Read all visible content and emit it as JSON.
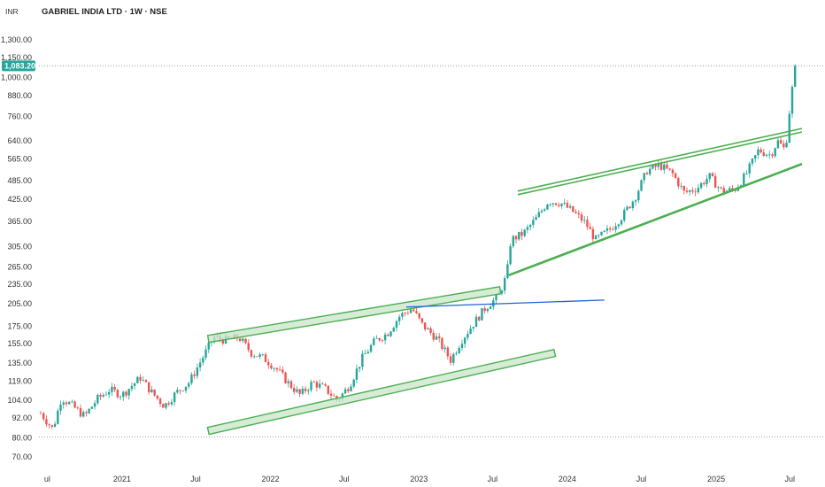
{
  "header": {
    "currency": "INR",
    "title": "GABRIEL INDIA LTD · 1W · NSE"
  },
  "colors": {
    "up_candle": "#26a69a",
    "down_candle": "#ef5350",
    "trendline_green": "#4caf50",
    "channel_fill": "#c8e6c9",
    "horizontal_line_blue": "#1e63d6",
    "price_badge": "#26a69a",
    "dotted_line": "#9e9e9e"
  },
  "current_price_label": "1,083.20",
  "chart_data": {
    "type": "candlestick",
    "title": "GABRIEL INDIA LTD · 1W · NSE",
    "y_scale": "log",
    "y_ticks": [
      "1,300.00",
      "1,150.00",
      "1,000.00",
      "880.00",
      "760.00",
      "640.00",
      "565.00",
      "485.00",
      "425.00",
      "365.00",
      "305.00",
      "265.00",
      "235.00",
      "205.00",
      "175.00",
      "155.00",
      "135.00",
      "119.00",
      "104.00",
      "92.00",
      "80.00",
      "70.00"
    ],
    "y_tick_values": [
      1300,
      1150,
      1000,
      880,
      760,
      640,
      565,
      485,
      425,
      365,
      305,
      265,
      235,
      205,
      175,
      155,
      135,
      119,
      104,
      92,
      80,
      70
    ],
    "ylim": [
      65,
      1400
    ],
    "x_range": [
      "2020-06-15",
      "2025-07-31"
    ],
    "x_ticks": [
      {
        "label": "ul",
        "date": "2020-07-01"
      },
      {
        "label": "2021",
        "date": "2021-01-01"
      },
      {
        "label": "Jul",
        "date": "2021-07-01"
      },
      {
        "label": "2022",
        "date": "2022-01-01"
      },
      {
        "label": "Jul",
        "date": "2022-07-01"
      },
      {
        "label": "2023",
        "date": "2023-01-01"
      },
      {
        "label": "Jul",
        "date": "2023-07-01"
      },
      {
        "label": "2024",
        "date": "2024-01-01"
      },
      {
        "label": "Jul",
        "date": "2024-07-01"
      },
      {
        "label": "2025",
        "date": "2025-01-01"
      },
      {
        "label": "Jul",
        "date": "2025-07-01"
      }
    ],
    "reference_lines": [
      {
        "kind": "dotted",
        "value": 1083.2
      },
      {
        "kind": "dotted",
        "value": 80.5
      }
    ],
    "price_path": [
      [
        "2020-06-15",
        95
      ],
      [
        "2020-07-15",
        85
      ],
      [
        "2020-08-05",
        106
      ],
      [
        "2020-09-01",
        100
      ],
      [
        "2020-10-01",
        93
      ],
      [
        "2020-11-01",
        105
      ],
      [
        "2020-12-01",
        112
      ],
      [
        "2021-01-01",
        108
      ],
      [
        "2021-02-15",
        122
      ],
      [
        "2021-03-15",
        110
      ],
      [
        "2021-04-15",
        100
      ],
      [
        "2021-05-15",
        110
      ],
      [
        "2021-06-15",
        118
      ],
      [
        "2021-07-15",
        138
      ],
      [
        "2021-08-15",
        162
      ],
      [
        "2021-09-15",
        158
      ],
      [
        "2021-10-15",
        162
      ],
      [
        "2021-11-15",
        145
      ],
      [
        "2021-12-15",
        140
      ],
      [
        "2022-01-15",
        130
      ],
      [
        "2022-02-15",
        117
      ],
      [
        "2022-03-15",
        108
      ],
      [
        "2022-04-15",
        118
      ],
      [
        "2022-05-15",
        113
      ],
      [
        "2022-06-15",
        104
      ],
      [
        "2022-07-15",
        116
      ],
      [
        "2022-08-15",
        140
      ],
      [
        "2022-09-15",
        158
      ],
      [
        "2022-10-15",
        166
      ],
      [
        "2022-11-15",
        188
      ],
      [
        "2022-12-15",
        198
      ],
      [
        "2023-01-10",
        176
      ],
      [
        "2023-02-15",
        160
      ],
      [
        "2023-03-20",
        138
      ],
      [
        "2023-04-15",
        158
      ],
      [
        "2023-05-15",
        178
      ],
      [
        "2023-06-15",
        200
      ],
      [
        "2023-07-15",
        215
      ],
      [
        "2023-08-05",
        250
      ],
      [
        "2023-08-15",
        320
      ],
      [
        "2023-09-15",
        335
      ],
      [
        "2023-10-15",
        370
      ],
      [
        "2023-11-15",
        420
      ],
      [
        "2023-12-15",
        415
      ],
      [
        "2024-01-15",
        390
      ],
      [
        "2024-02-15",
        360
      ],
      [
        "2024-03-10",
        320
      ],
      [
        "2024-04-15",
        345
      ],
      [
        "2024-05-15",
        378
      ],
      [
        "2024-06-15",
        430
      ],
      [
        "2024-07-15",
        520
      ],
      [
        "2024-08-15",
        540
      ],
      [
        "2024-09-15",
        510
      ],
      [
        "2024-10-15",
        445
      ],
      [
        "2024-11-15",
        460
      ],
      [
        "2024-12-15",
        500
      ],
      [
        "2025-01-15",
        450
      ],
      [
        "2025-02-15",
        455
      ],
      [
        "2025-03-15",
        505
      ],
      [
        "2025-04-15",
        600
      ],
      [
        "2025-05-15",
        580
      ],
      [
        "2025-06-01",
        640
      ],
      [
        "2025-06-20",
        600
      ],
      [
        "2025-07-05",
        900
      ],
      [
        "2025-07-20",
        1083.2
      ]
    ],
    "drawings": [
      {
        "type": "channel_band",
        "from": [
          "2021-08-01",
          160
        ],
        "to": [
          "2023-07-20",
          225
        ]
      },
      {
        "type": "channel_band",
        "from": [
          "2021-08-01",
          84
        ],
        "to": [
          "2023-12-01",
          145
        ]
      },
      {
        "type": "horizontal_ray",
        "from": [
          "2022-12-01",
          200
        ],
        "to": [
          "2024-04-01",
          210
        ]
      },
      {
        "type": "parallel_line",
        "from": [
          "2023-09-01",
          445
        ],
        "to": [
          "2025-07-31",
          690
        ]
      },
      {
        "type": "trendline",
        "from": [
          "2023-08-10",
          250
        ],
        "to": [
          "2025-07-31",
          545
        ]
      }
    ]
  }
}
